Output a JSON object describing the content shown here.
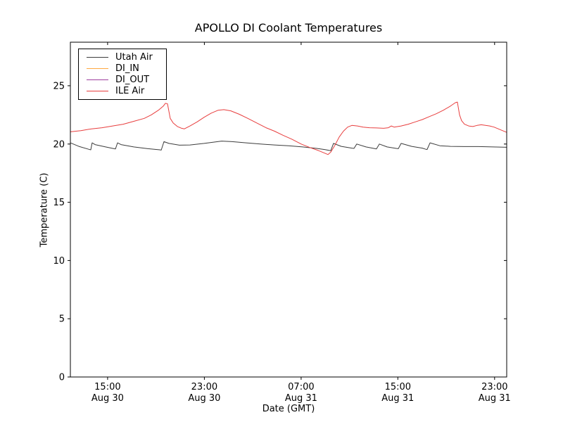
{
  "figure": {
    "background": "#ffffff",
    "frame_color": "#000000"
  },
  "chart_data": {
    "type": "line",
    "title": "APOLLO DI Coolant Temperatures",
    "xlabel": "Date (GMT)",
    "ylabel": "Temperature (C)",
    "grid": false,
    "legend_position": "upper left",
    "x_unit": "hours since Aug 30 00:00 GMT",
    "xlim": [
      11.92,
      48.0
    ],
    "ylim": [
      0,
      28.74
    ],
    "yticks": [
      0,
      5,
      10,
      15,
      20,
      25
    ],
    "xticks": [
      {
        "t": 15,
        "time": "15:00",
        "date": "Aug 30"
      },
      {
        "t": 23,
        "time": "23:00",
        "date": "Aug 30"
      },
      {
        "t": 31,
        "time": "07:00",
        "date": "Aug 31"
      },
      {
        "t": 39,
        "time": "15:00",
        "date": "Aug 31"
      },
      {
        "t": 47,
        "time": "23:00",
        "date": "Aug 31"
      }
    ],
    "series": [
      {
        "name": "Utah Air",
        "color": "#3c3c3c",
        "points": [
          [
            11.92,
            20.1
          ],
          [
            12.62,
            19.8
          ],
          [
            13.43,
            19.55
          ],
          [
            13.61,
            19.5
          ],
          [
            13.72,
            20.1
          ],
          [
            13.96,
            19.95
          ],
          [
            14.83,
            19.75
          ],
          [
            15.53,
            19.6
          ],
          [
            15.65,
            19.58
          ],
          [
            15.82,
            20.1
          ],
          [
            16.11,
            19.95
          ],
          [
            17.16,
            19.75
          ],
          [
            18.32,
            19.6
          ],
          [
            19.31,
            19.5
          ],
          [
            19.43,
            19.48
          ],
          [
            19.66,
            20.2
          ],
          [
            20.07,
            20.05
          ],
          [
            20.94,
            19.9
          ],
          [
            21.81,
            19.92
          ],
          [
            22.98,
            20.05
          ],
          [
            24.43,
            20.25
          ],
          [
            25.3,
            20.2
          ],
          [
            26.47,
            20.1
          ],
          [
            27.63,
            20.0
          ],
          [
            28.8,
            19.92
          ],
          [
            29.96,
            19.85
          ],
          [
            31.12,
            19.75
          ],
          [
            32.29,
            19.62
          ],
          [
            32.99,
            19.52
          ],
          [
            33.33,
            19.45
          ],
          [
            33.45,
            19.43
          ],
          [
            33.68,
            20.05
          ],
          [
            34.32,
            19.8
          ],
          [
            35.2,
            19.65
          ],
          [
            35.37,
            19.62
          ],
          [
            35.6,
            20.0
          ],
          [
            36.36,
            19.75
          ],
          [
            37.12,
            19.6
          ],
          [
            37.23,
            19.58
          ],
          [
            37.47,
            20.0
          ],
          [
            38.11,
            19.75
          ],
          [
            38.86,
            19.62
          ],
          [
            39.04,
            19.6
          ],
          [
            39.27,
            20.05
          ],
          [
            40.14,
            19.8
          ],
          [
            41.02,
            19.65
          ],
          [
            41.31,
            19.55
          ],
          [
            41.42,
            19.53
          ],
          [
            41.66,
            20.1
          ],
          [
            42.47,
            19.85
          ],
          [
            43.34,
            19.8
          ],
          [
            44.51,
            19.78
          ],
          [
            45.67,
            19.78
          ],
          [
            46.84,
            19.75
          ],
          [
            48.0,
            19.72
          ]
        ]
      },
      {
        "name": "DI_IN",
        "color": "#ffa940",
        "points": []
      },
      {
        "name": "DI_OUT",
        "color": "#9e3d9e",
        "points": []
      },
      {
        "name": "ILE Air",
        "color": "#e83e3e",
        "points": [
          [
            11.92,
            21.05
          ],
          [
            12.79,
            21.15
          ],
          [
            13.67,
            21.3
          ],
          [
            14.54,
            21.4
          ],
          [
            15.41,
            21.55
          ],
          [
            16.29,
            21.7
          ],
          [
            17.16,
            21.95
          ],
          [
            18.03,
            22.2
          ],
          [
            18.61,
            22.5
          ],
          [
            19.2,
            22.9
          ],
          [
            19.6,
            23.25
          ],
          [
            19.78,
            23.5
          ],
          [
            19.95,
            23.45
          ],
          [
            20.18,
            22.2
          ],
          [
            20.42,
            21.8
          ],
          [
            20.77,
            21.5
          ],
          [
            21.12,
            21.35
          ],
          [
            21.35,
            21.3
          ],
          [
            21.81,
            21.55
          ],
          [
            22.4,
            21.9
          ],
          [
            22.98,
            22.3
          ],
          [
            23.56,
            22.65
          ],
          [
            24.14,
            22.9
          ],
          [
            24.61,
            22.95
          ],
          [
            25.19,
            22.85
          ],
          [
            25.89,
            22.55
          ],
          [
            26.59,
            22.2
          ],
          [
            27.34,
            21.8
          ],
          [
            28.1,
            21.4
          ],
          [
            28.8,
            21.1
          ],
          [
            29.5,
            20.75
          ],
          [
            30.25,
            20.4
          ],
          [
            31.01,
            20.0
          ],
          [
            31.71,
            19.7
          ],
          [
            32.41,
            19.45
          ],
          [
            32.87,
            19.25
          ],
          [
            33.22,
            19.1
          ],
          [
            33.45,
            19.3
          ],
          [
            33.8,
            19.9
          ],
          [
            34.15,
            20.6
          ],
          [
            34.5,
            21.1
          ],
          [
            34.85,
            21.45
          ],
          [
            35.2,
            21.6
          ],
          [
            35.66,
            21.55
          ],
          [
            36.13,
            21.45
          ],
          [
            36.65,
            21.4
          ],
          [
            37.23,
            21.38
          ],
          [
            37.82,
            21.35
          ],
          [
            38.22,
            21.4
          ],
          [
            38.46,
            21.55
          ],
          [
            38.69,
            21.45
          ],
          [
            39.27,
            21.55
          ],
          [
            39.86,
            21.7
          ],
          [
            40.44,
            21.9
          ],
          [
            41.02,
            22.1
          ],
          [
            41.6,
            22.35
          ],
          [
            42.18,
            22.6
          ],
          [
            42.76,
            22.9
          ],
          [
            43.34,
            23.25
          ],
          [
            43.75,
            23.55
          ],
          [
            43.92,
            23.6
          ],
          [
            44.1,
            22.5
          ],
          [
            44.27,
            22.0
          ],
          [
            44.51,
            21.7
          ],
          [
            44.86,
            21.55
          ],
          [
            45.2,
            21.5
          ],
          [
            45.55,
            21.6
          ],
          [
            45.9,
            21.65
          ],
          [
            46.25,
            21.6
          ],
          [
            46.6,
            21.55
          ],
          [
            46.95,
            21.45
          ],
          [
            47.3,
            21.3
          ],
          [
            47.65,
            21.15
          ],
          [
            48.0,
            21.0
          ]
        ]
      }
    ]
  }
}
